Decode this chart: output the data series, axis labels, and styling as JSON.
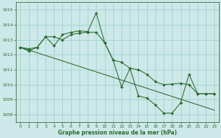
{
  "bg_color": "#cce8e8",
  "grid_color": "#99cccc",
  "line_color": "#2d6a2d",
  "marker_color": "#2d6a2d",
  "xlabel": "Graphe pression niveau de la mer (hPa)",
  "ylim": [
    1007.5,
    1015.5
  ],
  "xlim": [
    -0.5,
    23.5
  ],
  "yticks": [
    1008,
    1009,
    1010,
    1011,
    1012,
    1013,
    1014,
    1015
  ],
  "xticks": [
    0,
    1,
    2,
    3,
    4,
    5,
    6,
    7,
    8,
    9,
    10,
    11,
    12,
    13,
    14,
    15,
    16,
    17,
    18,
    19,
    20,
    21,
    22,
    23
  ],
  "series": [
    {
      "x": [
        0,
        1,
        2,
        3,
        4,
        5,
        6,
        7,
        8,
        9,
        10,
        11,
        12,
        13,
        14,
        15,
        16,
        17,
        18,
        19,
        20,
        21,
        22,
        23
      ],
      "y": [
        1012.5,
        1012.4,
        1012.5,
        1013.2,
        1012.6,
        1013.35,
        1013.5,
        1013.6,
        1013.55,
        1014.8,
        1012.8,
        1011.65,
        1009.85,
        1011.1,
        1009.25,
        1009.1,
        1008.65,
        1008.1,
        1008.1,
        1008.8,
        1010.7,
        1009.4,
        1009.4,
        1009.4
      ]
    },
    {
      "x": [
        0,
        1,
        2,
        3,
        4,
        5,
        6,
        7,
        8,
        9,
        10,
        11,
        12,
        13,
        14,
        15,
        16,
        17,
        18,
        19,
        20,
        21,
        22,
        23
      ],
      "y": [
        1012.5,
        1012.25,
        1012.5,
        1013.2,
        1013.2,
        1013.0,
        1013.35,
        1013.45,
        1013.5,
        1013.5,
        1012.8,
        1011.65,
        1011.5,
        1011.1,
        1011.0,
        1010.7,
        1010.2,
        1010.0,
        1010.05,
        1010.1,
        1010.0,
        1009.4,
        1009.4,
        1009.4
      ]
    },
    {
      "x": [
        0,
        23
      ],
      "y": [
        1012.5,
        1008.3
      ]
    }
  ]
}
